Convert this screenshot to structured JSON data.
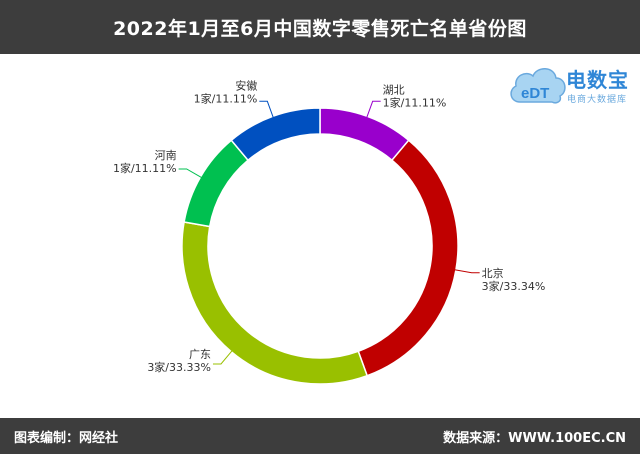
{
  "header": {
    "title": "2022年1月至6月中国数字零售死亡名单省份图"
  },
  "footer": {
    "left": "图表编制：网经社",
    "right": "数据来源：WWW.100EC.CN"
  },
  "logo": {
    "mark": "eDT",
    "name": "电数宝",
    "tagline": "电商大数据库"
  },
  "chart_data": {
    "type": "pie",
    "title": "2022年1月至6月中国数字零售死亡名单省份图",
    "donut": true,
    "start_angle_deg": 0,
    "direction": "clockwise",
    "slices": [
      {
        "name": "湖北",
        "label": "1家/11.11%",
        "count": 1,
        "percent": 11.11,
        "color": "#9900cc"
      },
      {
        "name": "北京",
        "label": "3家/33.34%",
        "count": 3,
        "percent": 33.34,
        "color": "#c00000"
      },
      {
        "name": "广东",
        "label": "3家/33.33%",
        "count": 3,
        "percent": 33.33,
        "color": "#99c000"
      },
      {
        "name": "河南",
        "label": "1家/11.11%",
        "count": 1,
        "percent": 11.11,
        "color": "#00c050"
      },
      {
        "name": "安徽",
        "label": "1家/11.11%",
        "count": 1,
        "percent": 11.11,
        "color": "#0050c0"
      }
    ]
  }
}
